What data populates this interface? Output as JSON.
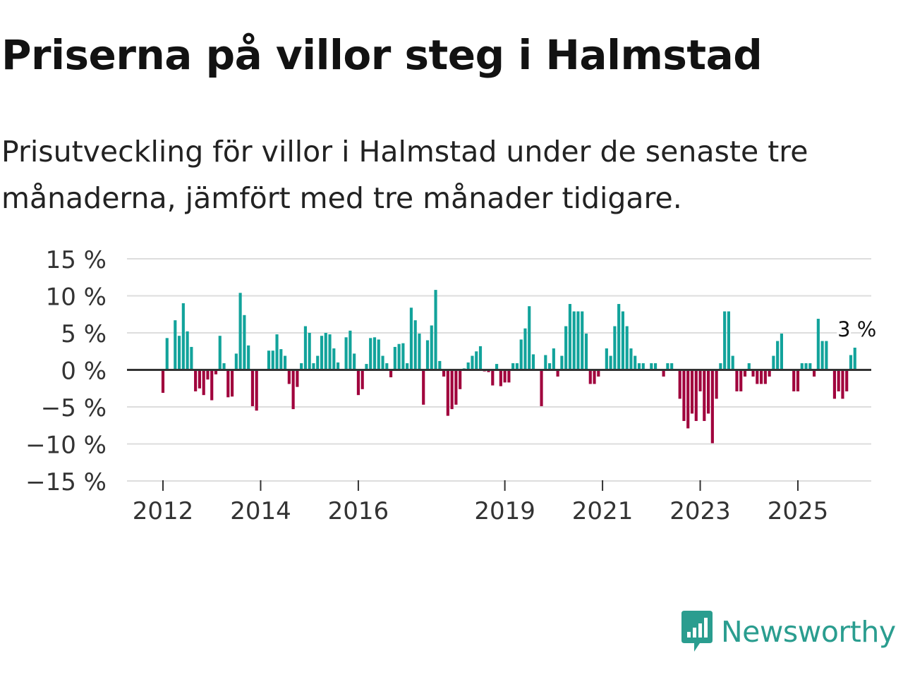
{
  "title": "Priserna på villor steg i Halmstad",
  "subtitle": "Prisutveckling för villor i Halmstad under de senaste tre månaderna, jämfört med tre månader tidigare.",
  "brand": {
    "name": "Newsworthy",
    "color": "#2a9d8f"
  },
  "colors": {
    "positive": "#12a39b",
    "negative": "#a0003c",
    "grid": "#dddddd",
    "zero_line": "#333333"
  },
  "chart_data": {
    "type": "bar",
    "title": "Priserna på villor steg i Halmstad",
    "subtitle": "Prisutveckling för villor i Halmstad under de senaste tre månaderna, jämfört med tre månader tidigare.",
    "xlabel": "",
    "ylabel": "",
    "unit": "%",
    "ylim": [
      -15,
      15
    ],
    "yticks": [
      15,
      10,
      5,
      0,
      -5,
      -10,
      -15
    ],
    "ytick_labels": [
      "15 %",
      "10 %",
      "5 %",
      "0 %",
      "−5 %",
      "−10 %",
      "−15 %"
    ],
    "xticks": [
      2012,
      2014,
      2016,
      2019,
      2021,
      2023,
      2025
    ],
    "xtick_labels": [
      "2012",
      "2014",
      "2016",
      "2019",
      "2021",
      "2023",
      "2025"
    ],
    "x_start": 2012.0,
    "x_step_years": 0.0833333,
    "grid": true,
    "annotation": {
      "text": "3 %",
      "value": 3
    },
    "values": [
      -3.1,
      4.3,
      0,
      6.7,
      4.6,
      9.0,
      5.2,
      3.1,
      -2.9,
      -2.5,
      -3.4,
      -1.3,
      -4.1,
      -0.6,
      4.6,
      0.9,
      -3.7,
      -3.6,
      2.2,
      10.4,
      7.4,
      3.3,
      -4.9,
      -5.5,
      0,
      0,
      2.6,
      2.6,
      4.8,
      2.8,
      1.9,
      -1.9,
      -5.3,
      -2.3,
      0.9,
      5.9,
      5.0,
      0.9,
      1.9,
      4.6,
      5.0,
      4.8,
      2.9,
      1.0,
      0,
      4.4,
      5.3,
      2.2,
      -3.4,
      -2.6,
      0.8,
      4.3,
      4.4,
      4.1,
      1.9,
      0.9,
      -1.0,
      3.1,
      3.5,
      3.6,
      0.9,
      8.4,
      6.7,
      4.9,
      -4.7,
      4.0,
      6.0,
      10.8,
      1.2,
      -0.9,
      -6.2,
      -5.3,
      -4.7,
      -2.6,
      0.2,
      1.0,
      1.9,
      2.5,
      3.2,
      -0.2,
      -0.3,
      -2.1,
      0.8,
      -2.2,
      -1.7,
      -1.7,
      0.9,
      0.9,
      4.1,
      5.6,
      8.6,
      2.1,
      0,
      -4.9,
      2.0,
      0.9,
      2.9,
      -0.9,
      1.9,
      5.9,
      8.9,
      7.9,
      7.9,
      7.9,
      4.9,
      -1.9,
      -1.9,
      -0.9,
      0,
      2.9,
      1.9,
      5.9,
      8.9,
      7.9,
      5.9,
      2.9,
      1.9,
      0.9,
      0.9,
      0,
      0.9,
      0.9,
      0,
      -0.9,
      0.9,
      0.9,
      0,
      -3.9,
      -6.9,
      -7.9,
      -5.9,
      -6.9,
      -2.9,
      -6.9,
      -5.9,
      -9.9,
      -3.9,
      0.9,
      7.9,
      7.9,
      1.9,
      -2.9,
      -2.9,
      -0.9,
      0.9,
      -0.9,
      -1.9,
      -1.9,
      -1.9,
      -0.9,
      1.9,
      3.9,
      4.9,
      0,
      0,
      -2.9,
      -2.9,
      0.9,
      0.9,
      0.9,
      -0.9,
      6.9,
      3.9,
      3.9,
      0,
      -3.9,
      -2.9,
      -3.9,
      -2.9,
      2.0,
      3.0
    ]
  }
}
